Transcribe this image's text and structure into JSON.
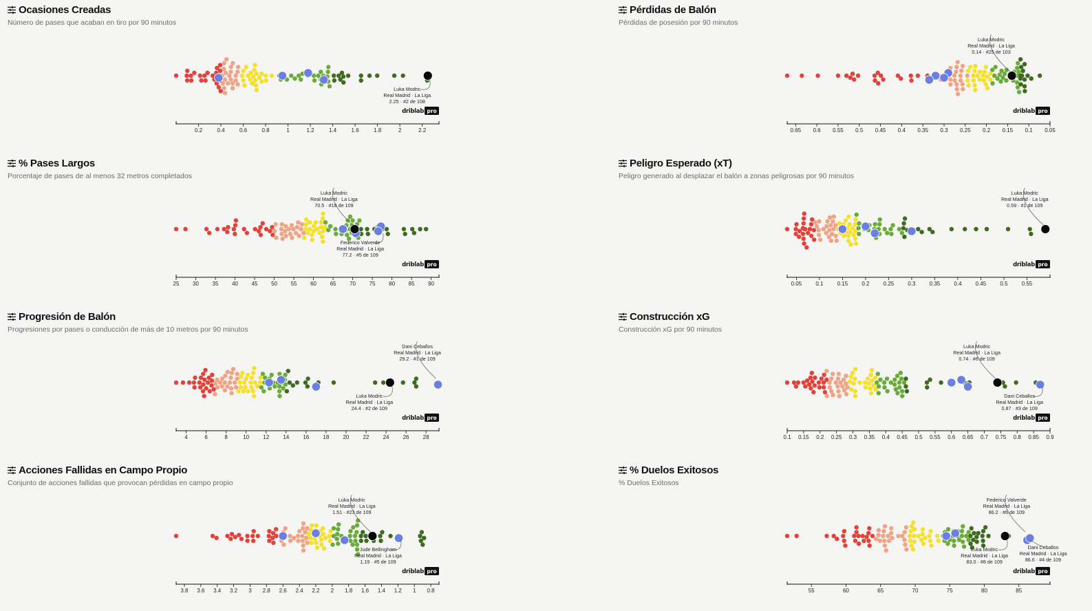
{
  "brand": {
    "name": "driblab",
    "badge": "pro"
  },
  "colors": {
    "red": "#e2423a",
    "salmon": "#efa486",
    "yellow": "#f5e02c",
    "lightgreen": "#6aab3b",
    "darkgreen": "#3e6b1f",
    "teammate": "#6b7fe0",
    "player": "#0a0a0a"
  },
  "chart_data": [
    {
      "type": "scatter",
      "title": "Ocasiones Creadas",
      "subtitle": "Número de pases que acaban en tiro por 90 minutos",
      "xmin": 0.0,
      "xmax": 2.35,
      "reverse": false,
      "ticks": [
        "0.2",
        "0.4",
        "0.6",
        "0.8",
        "1",
        "1.2",
        "1.4",
        "1.6",
        "1.8",
        "2",
        "2.2"
      ],
      "tick_values": [
        0.2,
        0.4,
        0.6,
        0.8,
        1.0,
        1.2,
        1.4,
        1.6,
        1.8,
        2.0,
        2.2
      ],
      "q": [
        0.4,
        0.56,
        0.86,
        1.4
      ],
      "population": 108,
      "teammates": [
        0.95,
        1.18,
        1.32,
        0.38
      ],
      "player": 2.25,
      "annotations": [
        {
          "value": 2.25,
          "name": "Luka Modric",
          "team": "Real Madrid · La Liga",
          "stat": "2.25 · #2 de 108",
          "side": "below"
        }
      ]
    },
    {
      "type": "scatter",
      "title": "Pérdidas de Balón",
      "subtitle": "Pérdidas de posesión por 90 minutos",
      "xmin": 0.05,
      "xmax": 0.67,
      "reverse": true,
      "ticks": [
        "0.65",
        "0.6",
        "0.55",
        "0.5",
        "0.45",
        "0.4",
        "0.35",
        "0.3",
        "0.25",
        "0.2",
        "0.15",
        "0.1",
        "0.05"
      ],
      "tick_values": [
        0.65,
        0.6,
        0.55,
        0.5,
        0.45,
        0.4,
        0.35,
        0.3,
        0.25,
        0.2,
        0.15,
        0.1,
        0.05
      ],
      "q": [
        0.31,
        0.245,
        0.19,
        0.12
      ],
      "population": 103,
      "teammates": [
        0.32,
        0.29,
        0.335,
        0.3
      ],
      "player": 0.14,
      "annotations": [
        {
          "value": 0.14,
          "name": "Luka Modric",
          "team": "Real Madrid · La Liga",
          "stat": "0.14 · #25 de 103",
          "side": "above"
        }
      ]
    },
    {
      "type": "scatter",
      "title": "% Pases Largos",
      "subtitle": "Porcentaje de pases de al menos 32 metros completados",
      "xmin": 25,
      "xmax": 92,
      "reverse": false,
      "ticks": [
        "25",
        "30",
        "35",
        "40",
        "45",
        "50",
        "55",
        "60",
        "65",
        "70",
        "75",
        "80",
        "85",
        "90"
      ],
      "tick_values": [
        25,
        30,
        35,
        40,
        45,
        50,
        55,
        60,
        65,
        70,
        75,
        80,
        85,
        90
      ],
      "q": [
        50,
        57.5,
        63,
        72
      ],
      "population": 109,
      "teammates": [
        67.5,
        77.2,
        70.8,
        76.5
      ],
      "player": 70.5,
      "annotations": [
        {
          "value": 70.5,
          "name": "Luka Modric",
          "team": "Real Madrid · La Liga",
          "stat": "70.5 · #18 de 109",
          "side": "above"
        },
        {
          "value": 77.2,
          "name": "Federico Valverde",
          "team": "Real Madrid · La Liga",
          "stat": "77.2 · #5 de 109",
          "side": "below"
        }
      ]
    },
    {
      "type": "scatter",
      "title": "Peligro Esperado (xT)",
      "subtitle": "Peligro generado al desplazar el balón a zonas peligrosas por 90 minutos",
      "xmin": 0.03,
      "xmax": 0.6,
      "reverse": false,
      "ticks": [
        "0.05",
        "0.1",
        "0.15",
        "0.2",
        "0.25",
        "0.3",
        "0.35",
        "0.4",
        "0.45",
        "0.5",
        "0.55"
      ],
      "tick_values": [
        0.05,
        0.1,
        0.15,
        0.2,
        0.25,
        0.3,
        0.35,
        0.4,
        0.45,
        0.5,
        0.55
      ],
      "q": [
        0.09,
        0.14,
        0.18,
        0.28
      ],
      "population": 109,
      "teammates": [
        0.15,
        0.2,
        0.22,
        0.3
      ],
      "player": 0.59,
      "annotations": [
        {
          "value": 0.59,
          "name": "Luka Modric",
          "team": "Real Madrid · La Liga",
          "stat": "0.59 · #1 de 109",
          "side": "above"
        }
      ]
    },
    {
      "type": "scatter",
      "title": "Progresión de Balón",
      "subtitle": "Progresiones por pases o conducción de más de 10 metros por 90 minutos",
      "xmin": 3.0,
      "xmax": 29.3,
      "reverse": false,
      "ticks": [
        "4",
        "6",
        "8",
        "10",
        "12",
        "14",
        "16",
        "18",
        "20",
        "22",
        "24",
        "26",
        "28"
      ],
      "tick_values": [
        4,
        6,
        8,
        10,
        12,
        14,
        16,
        18,
        20,
        22,
        24,
        26,
        28
      ],
      "q": [
        6.8,
        9.2,
        11.5,
        14.0
      ],
      "population": 109,
      "teammates": [
        12.3,
        13.5,
        17.0,
        29.2
      ],
      "player": 24.4,
      "annotations": [
        {
          "value": 24.4,
          "name": "Luka Modric",
          "team": "Real Madrid · La Liga",
          "stat": "24.4 · #2 de 109",
          "side": "below"
        },
        {
          "value": 29.2,
          "name": "Dani Ceballos",
          "team": "Real Madrid · La Liga",
          "stat": "29.2 · #1 de 109",
          "side": "above"
        }
      ]
    },
    {
      "type": "scatter",
      "title": "Construcción xG",
      "subtitle": "Construcción xG por 90 minutos",
      "xmin": 0.1,
      "xmax": 0.9,
      "reverse": false,
      "ticks": [
        "0.1",
        "0.15",
        "0.2",
        "0.25",
        "0.3",
        "0.35",
        "0.4",
        "0.45",
        "0.5",
        "0.55",
        "0.6",
        "0.65",
        "0.7",
        "0.75",
        "0.8",
        "0.85",
        "0.9"
      ],
      "tick_values": [
        0.1,
        0.15,
        0.2,
        0.25,
        0.3,
        0.35,
        0.4,
        0.45,
        0.5,
        0.55,
        0.6,
        0.65,
        0.7,
        0.75,
        0.8,
        0.85,
        0.9
      ],
      "q": [
        0.22,
        0.29,
        0.37,
        0.46
      ],
      "population": 109,
      "teammates": [
        0.6,
        0.63,
        0.65,
        0.87
      ],
      "player": 0.74,
      "annotations": [
        {
          "value": 0.74,
          "name": "Luka Modric",
          "team": "Real Madrid · La Liga",
          "stat": "0.74 · #6 de 109",
          "side": "above"
        },
        {
          "value": 0.87,
          "name": "Dani Ceballos",
          "team": "Real Madrid · La Liga",
          "stat": "0.87 · #3 de 109",
          "side": "below"
        }
      ]
    },
    {
      "type": "scatter",
      "title": "Acciones Fallidas en Campo Propio",
      "subtitle": "Conjunto de acciones fallidas que provocan pérdidas en campo propio",
      "xmin": 0.7,
      "xmax": 3.9,
      "reverse": true,
      "ticks": [
        "3.8",
        "3.6",
        "3.4",
        "3.2",
        "3",
        "2.8",
        "2.6",
        "2.4",
        "2.2",
        "2",
        "1.8",
        "1.6",
        "1.4",
        "1.2",
        "1",
        "0.8"
      ],
      "tick_values": [
        3.8,
        3.6,
        3.4,
        3.2,
        3.0,
        2.8,
        2.6,
        2.4,
        2.2,
        2.0,
        1.8,
        1.6,
        1.4,
        1.2,
        1.0,
        0.8
      ],
      "q": [
        2.65,
        2.3,
        2.0,
        1.65
      ],
      "population": 109,
      "teammates": [
        2.6,
        2.2,
        1.85,
        1.19
      ],
      "player": 1.51,
      "annotations": [
        {
          "value": 1.51,
          "name": "Luka Modric",
          "team": "Real Madrid · La Liga",
          "stat": "1.51 · #23 de 109",
          "side": "above"
        },
        {
          "value": 1.19,
          "name": "Jude Bellingham",
          "team": "Real Madrid · La Liga",
          "stat": "1.19 · #5 de 109",
          "side": "below"
        }
      ]
    },
    {
      "type": "scatter",
      "title": "% Duelos Exitosos",
      "subtitle": "% Duelos Exitosos",
      "xmin": 51.5,
      "xmax": 89.5,
      "reverse": false,
      "ticks": [
        "55",
        "60",
        "65",
        "70",
        "75",
        "80",
        "85"
      ],
      "tick_values": [
        55,
        60,
        65,
        70,
        75,
        80,
        85
      ],
      "q": [
        64,
        69,
        74,
        78
      ],
      "population": 109,
      "teammates": [
        74.5,
        75.8,
        86.2,
        86.6
      ],
      "player": 83.0,
      "annotations": [
        {
          "value": 86.2,
          "name": "Federico Valverde",
          "team": "Real Madrid · La Liga",
          "stat": "86.2 · #6 de 109",
          "side": "above"
        },
        {
          "value": 83.0,
          "name": "Luka Modric",
          "team": "Real Madrid · La Liga",
          "stat": "83.0 · #8 de 109",
          "side": "below"
        },
        {
          "value": 86.6,
          "name": "Dani Ceballos",
          "team": "Real Madrid · La Liga",
          "stat": "86.6 · #4 de 109",
          "side": "below2"
        }
      ]
    }
  ]
}
